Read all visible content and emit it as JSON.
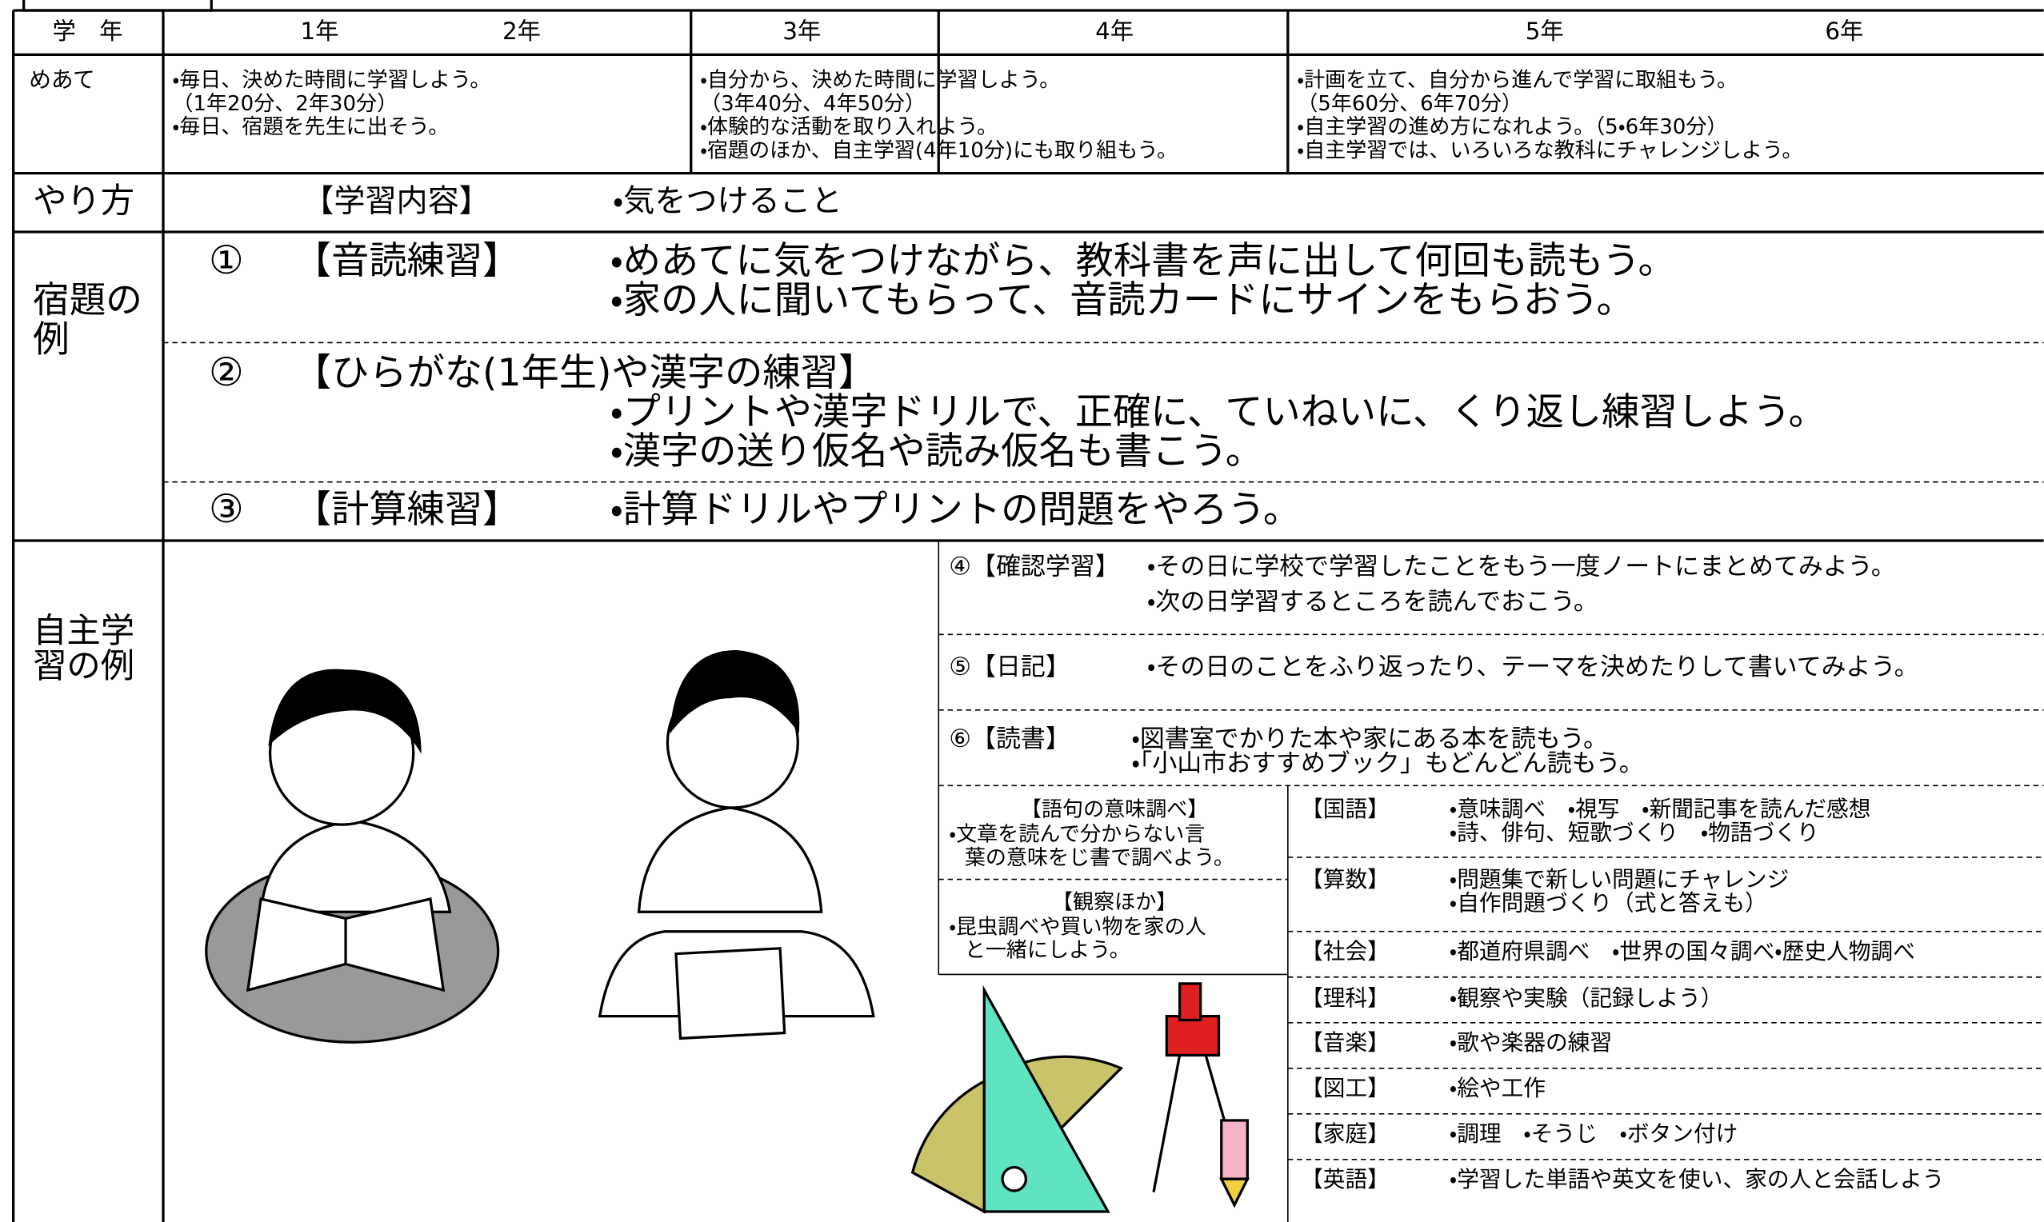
{
  "header": {
    "grade_label": "学　年",
    "grades": [
      "1年",
      "2年",
      "3年",
      "4年",
      "5年",
      "6年"
    ]
  },
  "goals": {
    "label": "めあて",
    "cells": [
      [
        "・毎日、決めた時間に学習しよう。",
        "（1年20分、2年30分）",
        "・毎日、宿題を先生に出そう。"
      ],
      [
        "・自分から、決めた時間に学習しよう。",
        "（3年40分、4年50分）",
        "・体験的な活動を取り入れよう。",
        "・宿題のほか、自主学習(4年10分)にも取り組もう。"
      ],
      [
        "・計画を立て、自分から進んで学習に取組もう。",
        "（5年60分、6年70分）",
        "・自主学習の進め方になれよう。（5・6年30分）",
        "・自主学習では、いろいろな教科にチャレンジしよう。"
      ]
    ]
  },
  "method": {
    "label": "やり方",
    "content_heading": "【学習内容】",
    "points_heading": "・気をつけること"
  },
  "homework": {
    "label": [
      "宿題の",
      "例"
    ],
    "items": [
      {
        "number": "①",
        "title": "【音読練習】",
        "points": [
          "・めあてに気をつけながら、教科書を声に出して何回も読もう。",
          "・家の人に聞いてもらって、音読カードにサインをもらおう。"
        ]
      },
      {
        "number": "②",
        "title": "【ひらがな(1年生)や漢字の練習】",
        "points": [
          "・プリントや漢字ドリルで、正確に、ていねいに、くり返し練習しよう。",
          "・漢字の送り仮名や読み仮名も書こう。"
        ]
      },
      {
        "number": "③",
        "title": "【計算練習】",
        "points": [
          "・計算ドリルやプリントの問題をやろう。"
        ]
      }
    ]
  },
  "self_study": {
    "label": [
      "自主学",
      "習の例"
    ],
    "items": [
      {
        "title": "④【確認学習】",
        "points": [
          "・その日に学校で学習したことをもう一度ノートにまとめてみよう。",
          "・次の日学習するところを読んでおこう。"
        ]
      },
      {
        "title": "⑤【日記】",
        "points": [
          "・その日のことをふり返ったり、テーマを決めたりして書いてみよう。"
        ]
      },
      {
        "title": "⑥【読書】",
        "points": [
          "・図書室でかりた本や家にある本を読もう。",
          "・「小山市おすすめブック」もどんどん読もう。"
        ]
      }
    ],
    "side_notes": [
      {
        "title": "【語句の意味調べ】",
        "lines": [
          "・文章を読んで分からない言",
          "葉の意味をじ書で調べよう。"
        ]
      },
      {
        "title": "【観察ほか】",
        "lines": [
          "・昆虫調べや買い物を家の人",
          "と一緒にしよう。"
        ]
      }
    ],
    "subjects": [
      {
        "name": "【国語】",
        "lines": [
          "・意味調べ　・視写　・新聞記事を読んだ感想",
          "・詩、俳句、短歌づくり　・物語づくり"
        ]
      },
      {
        "name": "【算数】",
        "lines": [
          "・問題集で新しい問題にチャレンジ",
          "・自作問題づくり（式と答えも）"
        ]
      },
      {
        "name": "【社会】",
        "lines": [
          "・都道府県調べ　・世界の国々調べ・歴史人物調べ"
        ]
      },
      {
        "name": "【理科】",
        "lines": [
          "・観察や実験（記録しよう）"
        ]
      },
      {
        "name": "【音楽】",
        "lines": [
          "・歌や楽器の練習"
        ]
      },
      {
        "name": "【図工】",
        "lines": [
          "・絵や工作"
        ]
      },
      {
        "name": "【家庭】",
        "lines": [
          "・調理　・そうじ　・ボタン付け"
        ]
      },
      {
        "name": "【英語】",
        "lines": [
          "・学習した単語や英文を使い、家の人と会話しよう"
        ]
      }
    ]
  }
}
